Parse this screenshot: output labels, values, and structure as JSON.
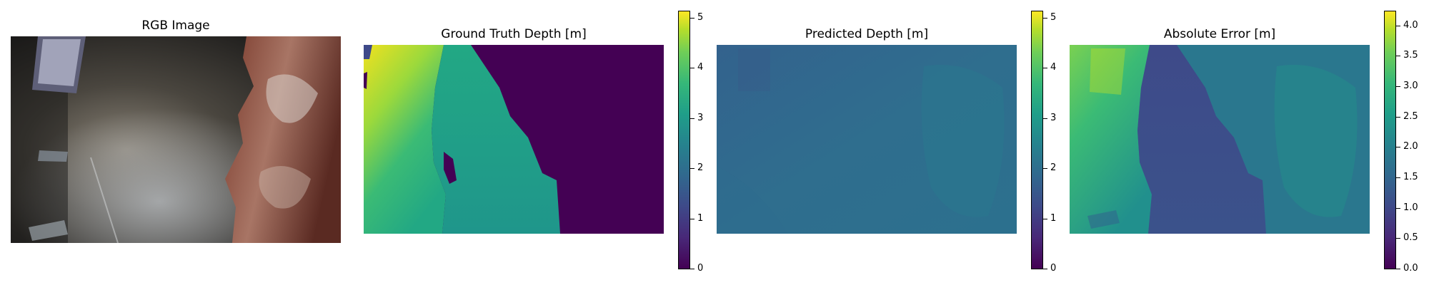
{
  "panels": [
    {
      "title": "RGB Image"
    },
    {
      "title": "Ground Truth Depth [m]",
      "colorbar": {
        "min": 0,
        "max": 5.15,
        "ticks": [
          "0",
          "1",
          "2",
          "3",
          "4",
          "5"
        ]
      }
    },
    {
      "title": "Predicted Depth [m]",
      "colorbar": {
        "min": 0,
        "max": 5.15,
        "ticks": [
          "0",
          "1",
          "2",
          "3",
          "4",
          "5"
        ]
      }
    },
    {
      "title": "Absolute Error [m]",
      "colorbar": {
        "min": 0,
        "max": 4.25,
        "ticks": [
          "0.0",
          "0.5",
          "1.0",
          "1.5",
          "2.0",
          "2.5",
          "3.0",
          "3.5",
          "4.0"
        ]
      }
    }
  ],
  "colormap": "viridis",
  "colors": {
    "gt_far": "#f0e11f",
    "gt_mid": "#22a884",
    "gt_near": "#440154",
    "pred": "#2f6e8e",
    "err_high": "#7ad151",
    "err_low": "#3b528b"
  }
}
